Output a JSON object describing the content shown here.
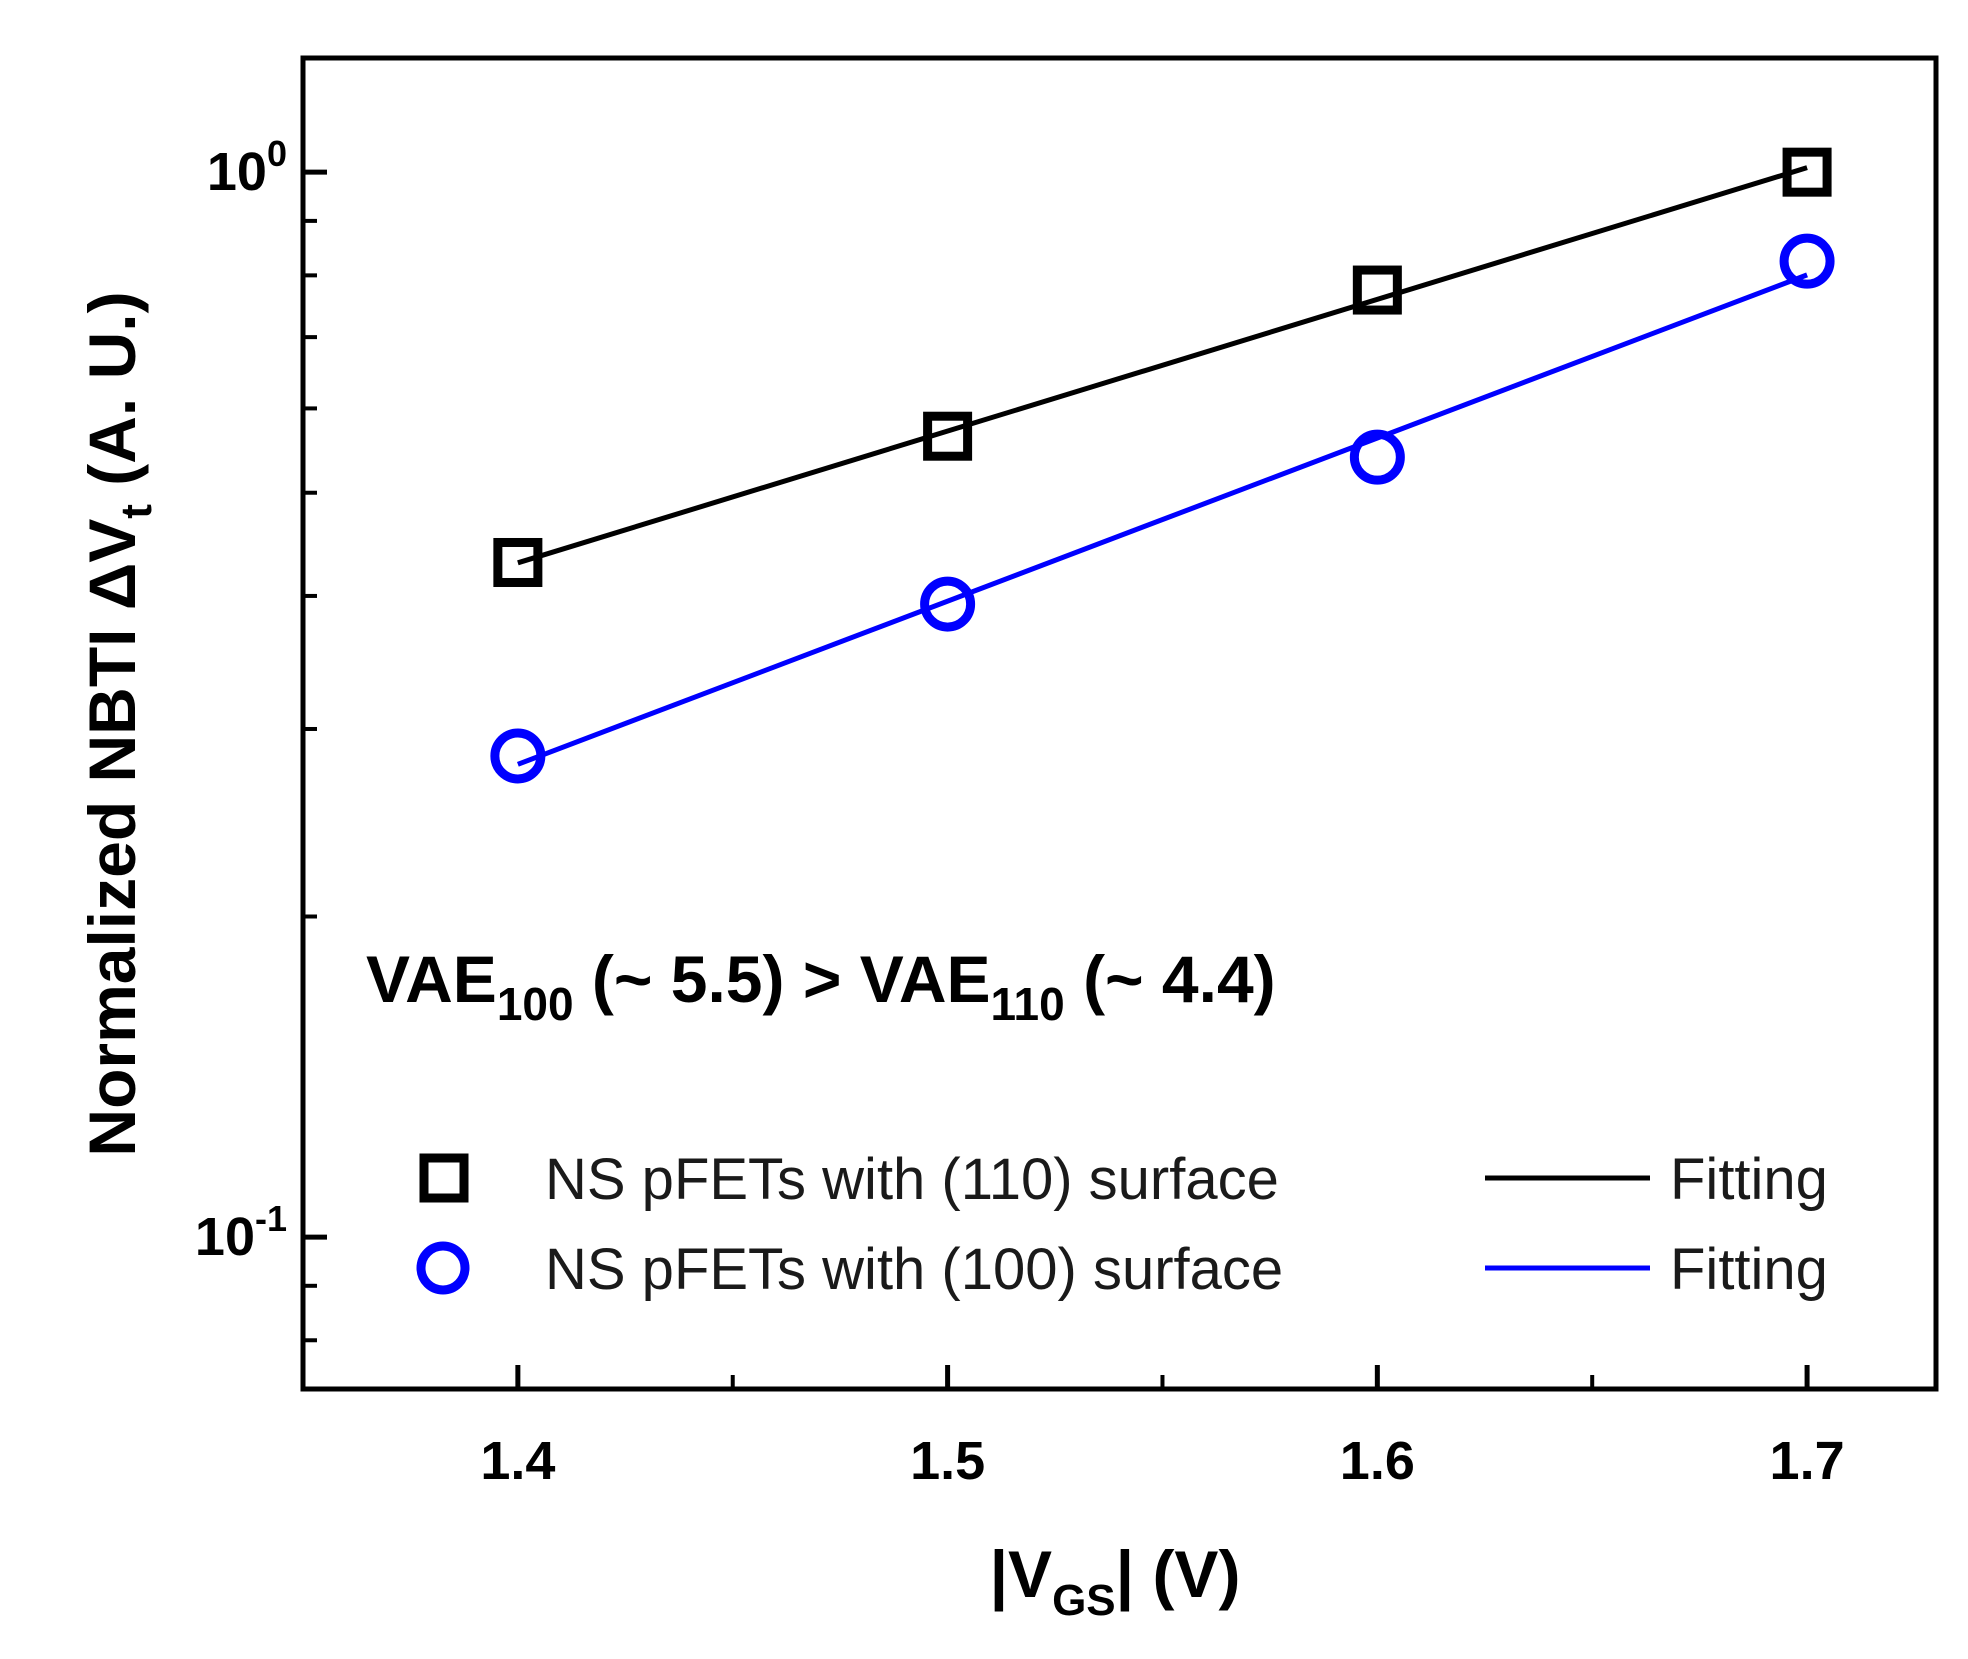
{
  "chart_data": {
    "type": "scatter",
    "title": "",
    "xlabel": {
      "pre": "|V",
      "sub": "GS",
      "post": "| (V)"
    },
    "ylabel": {
      "pre": "Normalized NBTI ΔV",
      "sub": "t",
      "post": " (A. U.)"
    },
    "xlim": [
      1.35,
      1.73
    ],
    "ylim": [
      0.072,
      1.28
    ],
    "yscale": "log",
    "grid": false,
    "x_ticks": [
      1.4,
      1.5,
      1.6,
      1.7
    ],
    "x_tick_labels": [
      "1.4",
      "1.5",
      "1.6",
      "1.7"
    ],
    "y_major_ticks": [
      {
        "value": 1,
        "base": "10",
        "exp": "0"
      },
      {
        "value": 0.1,
        "base": "10",
        "exp": "-1"
      }
    ],
    "series": [
      {
        "name": "NS pFETs with (110) surface",
        "marker": "square",
        "color": "#000000",
        "x": [
          1.4,
          1.5,
          1.6,
          1.7
        ],
        "y": [
          0.43,
          0.565,
          0.775,
          1.0
        ],
        "fit_name": "Fitting"
      },
      {
        "name": "NS pFETs with (100) surface",
        "marker": "circle",
        "color": "#0000ff",
        "x": [
          1.4,
          1.5,
          1.6,
          1.7
        ],
        "y": [
          0.283,
          0.393,
          0.54,
          0.825
        ],
        "fit_name": "Fitting"
      }
    ],
    "annotation": {
      "parts": [
        {
          "text": "VAE",
          "sub": "100"
        },
        {
          "text": " (~ 5.5) > VAE",
          "sub": "110"
        },
        {
          "text": " (~ 4.4)",
          "sub": ""
        }
      ]
    },
    "legend_position": "bottom-right"
  }
}
